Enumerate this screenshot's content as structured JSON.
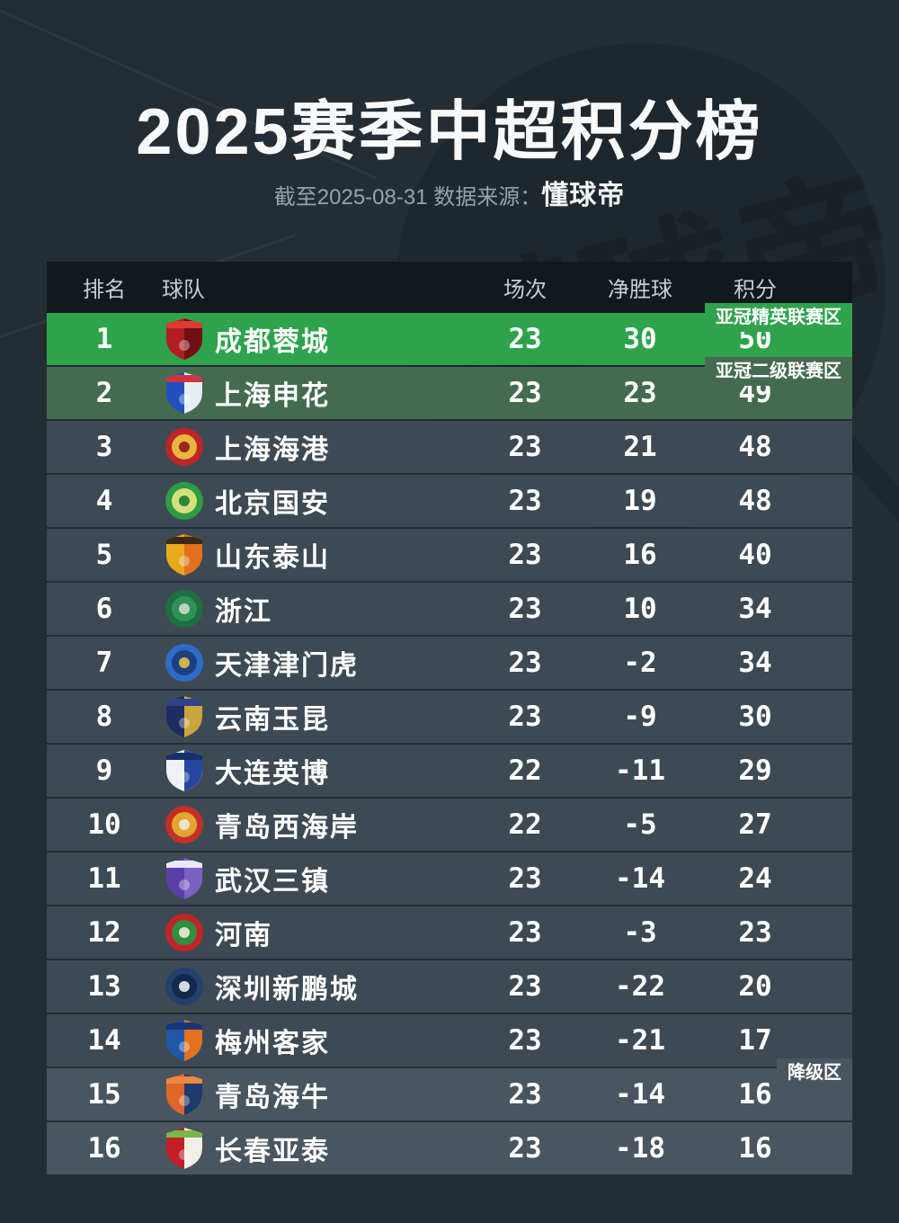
{
  "page": {
    "watermark": "懂球帝"
  },
  "header": {
    "title": "2025赛季中超积分榜",
    "subtitle_prefix": "截至2025-08-31 数据来源：",
    "source": "懂球帝"
  },
  "colors": {
    "page_bg": "#242d34",
    "header_bg": "#12181d",
    "row": "#3e4a53",
    "releg": "#49565f",
    "elite": "#2ea34c",
    "tier2": "#446b50"
  },
  "chart_data": {
    "type": "table",
    "title": "2025赛季中超积分榜",
    "subtitle": "截至2025-08-31 数据来源：懂球帝",
    "columns": {
      "rank": "排名",
      "team": "球队",
      "played": "场次",
      "gd": "净胜球",
      "points": "积分"
    },
    "zones": {
      "elite": "亚冠精英联赛区",
      "tier2": "亚冠二级联赛区",
      "releg": "降级区"
    },
    "rows": [
      {
        "rank": 1,
        "team": "成都蓉城",
        "played": 23,
        "gd": "30",
        "points": 50,
        "style": "elite",
        "badge": "elite",
        "crest": {
          "shape": "shield",
          "c1": "#b01e23",
          "c2": "#701015",
          "c3": "#e03a2e"
        }
      },
      {
        "rank": 2,
        "team": "上海申花",
        "played": 23,
        "gd": "23",
        "points": 49,
        "style": "tier2",
        "badge": "tier2",
        "crest": {
          "shape": "shield",
          "c1": "#2150bd",
          "c2": "#e9edf4",
          "c3": "#cf3440"
        }
      },
      {
        "rank": 3,
        "team": "上海海港",
        "played": 23,
        "gd": "21",
        "points": 48,
        "style": null,
        "badge": null,
        "crest": {
          "shape": "circle",
          "c1": "#c0232a",
          "c2": "#e6b63d",
          "c3": "#8f161c"
        }
      },
      {
        "rank": 4,
        "team": "北京国安",
        "played": 23,
        "gd": "19",
        "points": 48,
        "style": null,
        "badge": null,
        "crest": {
          "shape": "circle",
          "c1": "#2d9c45",
          "c2": "#d6e07a",
          "c3": "#1f7a33"
        }
      },
      {
        "rank": 5,
        "team": "山东泰山",
        "played": 23,
        "gd": "16",
        "points": 40,
        "style": null,
        "badge": null,
        "crest": {
          "shape": "shield",
          "c1": "#e9a91f",
          "c2": "#e2701c",
          "c3": "#3a2b12"
        }
      },
      {
        "rank": 6,
        "team": "浙江",
        "played": 23,
        "gd": "10",
        "points": 34,
        "style": null,
        "badge": null,
        "crest": {
          "shape": "circle",
          "c1": "#1d6f41",
          "c2": "#2f9158",
          "c3": "#cfd8cc"
        }
      },
      {
        "rank": 7,
        "team": "天津津门虎",
        "played": 23,
        "gd": "-2",
        "points": 34,
        "style": null,
        "badge": null,
        "crest": {
          "shape": "circle",
          "c1": "#2b6cc9",
          "c2": "#1b407e",
          "c3": "#e4c04a"
        }
      },
      {
        "rank": 8,
        "team": "云南玉昆",
        "played": 23,
        "gd": "-9",
        "points": 30,
        "style": null,
        "badge": null,
        "crest": {
          "shape": "shield",
          "c1": "#1d2c62",
          "c2": "#caa43c",
          "c3": "#31418a"
        }
      },
      {
        "rank": 9,
        "team": "大连英博",
        "played": 22,
        "gd": "-11",
        "points": 29,
        "style": null,
        "badge": null,
        "crest": {
          "shape": "shield",
          "c1": "#eef2f6",
          "c2": "#2447a0",
          "c3": "#16306e"
        }
      },
      {
        "rank": 10,
        "team": "青岛西海岸",
        "played": 22,
        "gd": "-5",
        "points": 27,
        "style": null,
        "badge": null,
        "crest": {
          "shape": "circle",
          "c1": "#c52f28",
          "c2": "#e2a52f",
          "c3": "#f2e9dc"
        }
      },
      {
        "rank": 11,
        "team": "武汉三镇",
        "played": 23,
        "gd": "-14",
        "points": 24,
        "style": null,
        "badge": null,
        "crest": {
          "shape": "shield",
          "c1": "#5b3fa8",
          "c2": "#7c60c4",
          "c3": "#ece8f4"
        }
      },
      {
        "rank": 12,
        "team": "河南",
        "played": 23,
        "gd": "-3",
        "points": 23,
        "style": null,
        "badge": null,
        "crest": {
          "shape": "circle",
          "c1": "#c22329",
          "c2": "#2f8f3f",
          "c3": "#efe9d8"
        }
      },
      {
        "rank": 13,
        "team": "深圳新鹏城",
        "played": 23,
        "gd": "-22",
        "points": 20,
        "style": null,
        "badge": null,
        "crest": {
          "shape": "circle",
          "c1": "#24416e",
          "c2": "#122a4e",
          "c3": "#e8edf2"
        }
      },
      {
        "rank": 14,
        "team": "梅州客家",
        "played": 23,
        "gd": "-21",
        "points": 17,
        "style": null,
        "badge": null,
        "crest": {
          "shape": "shield",
          "c1": "#2257a8",
          "c2": "#e4711f",
          "c3": "#17367a"
        }
      },
      {
        "rank": 15,
        "team": "青岛海牛",
        "played": 23,
        "gd": "-14",
        "points": 16,
        "style": "releg",
        "badge": "releg",
        "crest": {
          "shape": "shield",
          "c1": "#e0662a",
          "c2": "#1e3a6e",
          "c3": "#ee8840"
        }
      },
      {
        "rank": 16,
        "team": "长春亚泰",
        "played": 23,
        "gd": "-18",
        "points": 16,
        "style": "releg",
        "badge": null,
        "crest": {
          "shape": "shield",
          "c1": "#c01f27",
          "c2": "#f2efe8",
          "c3": "#7ab648"
        }
      }
    ]
  }
}
